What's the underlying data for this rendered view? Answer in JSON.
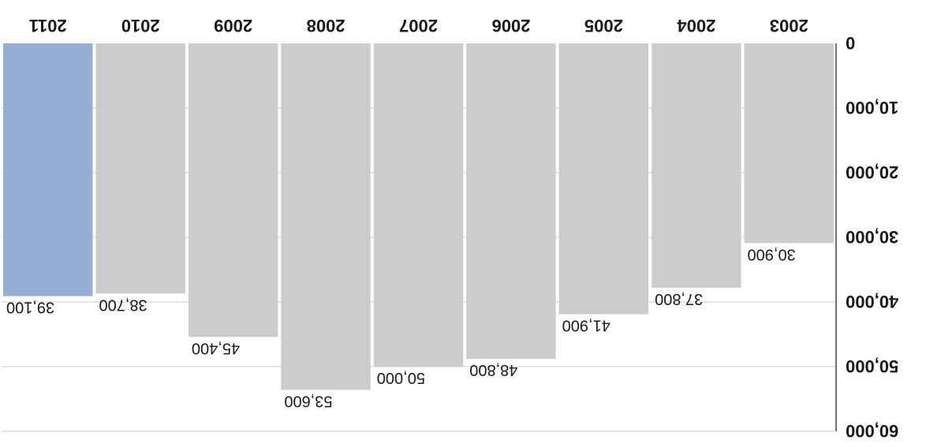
{
  "chart_data": {
    "type": "bar",
    "orientation": "rotated-180",
    "categories": [
      "2003",
      "2004",
      "2005",
      "2006",
      "2007",
      "2008",
      "2009",
      "2010",
      "2011"
    ],
    "values": [
      30900,
      37800,
      41900,
      48800,
      50000,
      53600,
      45400,
      38700,
      39100
    ],
    "value_labels": [
      "30,900",
      "37,800",
      "41,900",
      "48,800",
      "50,000",
      "53,600",
      "45,400",
      "38,700",
      "39,100"
    ],
    "ylim": [
      0,
      60000
    ],
    "yticks": [
      0,
      10000,
      20000,
      30000,
      40000,
      50000,
      60000
    ],
    "ytick_labels": [
      "0",
      "10,000",
      "20,000",
      "30,000",
      "40,000",
      "50,000",
      "60,000"
    ],
    "highlight_category": "2011",
    "colors": {
      "bar": "#cccccc",
      "highlight": "#94afd3",
      "grid": "#c8c8c8",
      "axis": "#444444"
    },
    "grid": true
  }
}
